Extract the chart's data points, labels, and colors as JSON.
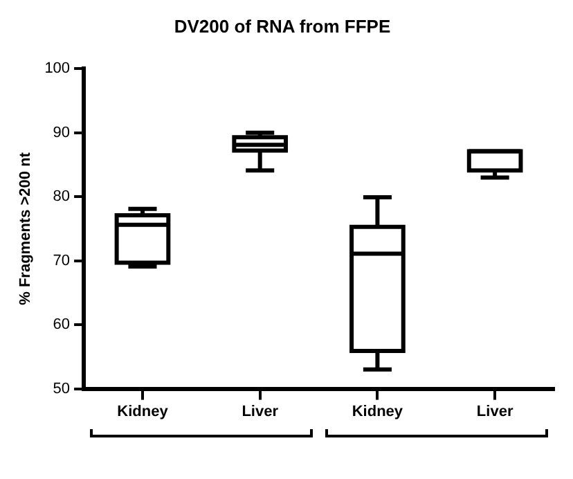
{
  "chart_data": {
    "type": "box",
    "title": "DV200 of RNA from FFPE",
    "ylabel": "% Fragments >200 nt",
    "categories": [
      "Kidney",
      "Liver",
      "Kidney",
      "Liver"
    ],
    "color": "#000000",
    "boxes": [
      {
        "low": 69.1,
        "q1": 69.7,
        "median": 75.6,
        "q3": 77.1,
        "high": 78.1
      },
      {
        "low": 84.1,
        "q1": 87.2,
        "median": 88.1,
        "q3": 89.3,
        "high": 90
      },
      {
        "low": 53,
        "q1": 55.9,
        "median": 71.1,
        "q3": 75.3,
        "high": 79.9
      },
      {
        "low": 83,
        "q1": 84.1,
        "median": 87.1,
        "q3": 87.1,
        "high": 87.1
      }
    ],
    "ylim": [
      50,
      100
    ],
    "yticks": [
      50,
      60,
      70,
      80,
      90,
      100
    ],
    "grid": false,
    "legend": false
  }
}
